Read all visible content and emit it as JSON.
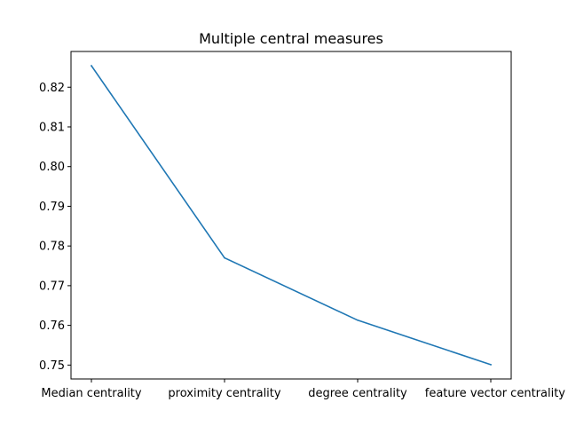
{
  "chart_data": {
    "type": "line",
    "title": "Multiple central measures",
    "xlabel": "",
    "ylabel": "",
    "categories": [
      "Median centrality",
      "proximity centrality",
      "degree centrality",
      "feature vector centrality"
    ],
    "series": [
      {
        "values": [
          0.8254,
          0.777,
          0.7613,
          0.7501
        ],
        "color": "#1f77b4"
      }
    ],
    "ylim": [
      0.7465,
      0.829
    ],
    "yticks": [
      0.75,
      0.76,
      0.77,
      0.78,
      0.79,
      0.8,
      0.81,
      0.82
    ],
    "ytick_labels": [
      "0.75",
      "0.76",
      "0.77",
      "0.78",
      "0.79",
      "0.80",
      "0.81",
      "0.82"
    ],
    "grid": false,
    "legend": "none"
  }
}
